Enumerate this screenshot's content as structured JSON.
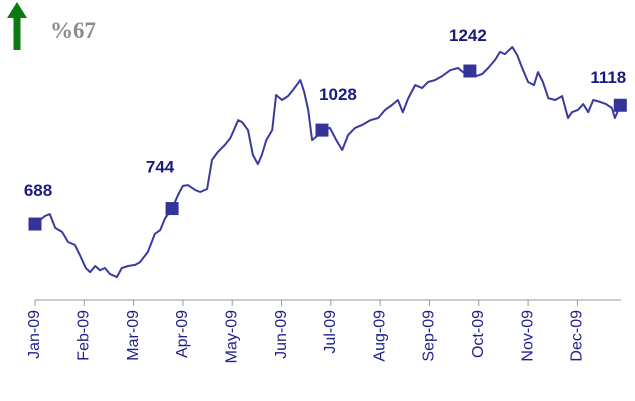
{
  "chart_data": {
    "type": "line",
    "annotation": "%67",
    "x": [
      0,
      0.2,
      0.3,
      0.41,
      0.55,
      0.67,
      0.81,
      0.91,
      1.03,
      1.12,
      1.22,
      1.32,
      1.42,
      1.52,
      1.66,
      1.76,
      1.89,
      2.03,
      2.13,
      2.29,
      2.43,
      2.54,
      2.64,
      2.78,
      2.9,
      3.0,
      3.1,
      3.25,
      3.35,
      3.49,
      3.59,
      3.71,
      3.85,
      3.96,
      4.12,
      4.2,
      4.32,
      4.42,
      4.52,
      4.6,
      4.69,
      4.81,
      4.89,
      5.01,
      5.13,
      5.23,
      5.38,
      5.46,
      5.54,
      5.62,
      5.74,
      5.82,
      5.98,
      6.11,
      6.23,
      6.35,
      6.49,
      6.63,
      6.8,
      6.96,
      7.1,
      7.24,
      7.36,
      7.46,
      7.57,
      7.71,
      7.85,
      7.97,
      8.11,
      8.26,
      8.42,
      8.58,
      8.68,
      8.82,
      8.95,
      9.07,
      9.19,
      9.33,
      9.43,
      9.53,
      9.68,
      9.78,
      9.88,
      10.0,
      10.12,
      10.2,
      10.3,
      10.41,
      10.55,
      10.69,
      10.81,
      10.89,
      11.01,
      11.12,
      11.22,
      11.32,
      11.46,
      11.58,
      11.7,
      11.76,
      11.87
    ],
    "values": [
      688,
      717,
      724,
      674,
      659,
      623,
      612,
      576,
      529,
      514,
      536,
      521,
      529,
      507,
      496,
      529,
      536,
      540,
      550,
      587,
      652,
      666,
      710,
      744,
      793,
      826,
      829,
      811,
      804,
      815,
      920,
      949,
      974,
      999,
      1064,
      1057,
      1028,
      938,
      905,
      938,
      992,
      1028,
      1155,
      1137,
      1151,
      1173,
      1209,
      1166,
      1101,
      992,
      1010,
      1028,
      1036,
      992,
      956,
      1010,
      1036,
      1046,
      1064,
      1072,
      1101,
      1119,
      1137,
      1093,
      1144,
      1191,
      1180,
      1202,
      1209,
      1224,
      1245,
      1253,
      1238,
      1242,
      1224,
      1231,
      1253,
      1282,
      1311,
      1303,
      1329,
      1300,
      1253,
      1202,
      1191,
      1238,
      1202,
      1144,
      1137,
      1151,
      1072,
      1093,
      1101,
      1122,
      1093,
      1137,
      1130,
      1122,
      1108,
      1072,
      1118
    ],
    "color": "#3a3aa0",
    "marker_color": "#33339a",
    "points": [
      {
        "x": 0,
        "value": 688
      },
      {
        "x": 2.78,
        "value": 744
      },
      {
        "x": 5.82,
        "value": 1028
      },
      {
        "x": 8.82,
        "value": 1242
      },
      {
        "x": 11.87,
        "value": 1118
      }
    ],
    "xlim": [
      0,
      11.87
    ],
    "xticks": [
      {
        "value": 0,
        "label": "Jan-09"
      },
      {
        "value": 1,
        "label": "Feb-09"
      },
      {
        "value": 2,
        "label": "Mar-09"
      },
      {
        "value": 3,
        "label": "Apr-09"
      },
      {
        "value": 4,
        "label": "May-09"
      },
      {
        "value": 5,
        "label": "Jun-09"
      },
      {
        "value": 6,
        "label": "Jul-09"
      },
      {
        "value": 7,
        "label": "Aug-09"
      },
      {
        "value": 8,
        "label": "Sep-09"
      },
      {
        "value": 9,
        "label": "Oct-09"
      },
      {
        "value": 10,
        "label": "Nov-09"
      },
      {
        "value": 11,
        "label": "Dec-09"
      }
    ],
    "ylim": [
      413,
      1499
    ],
    "grid": false
  }
}
